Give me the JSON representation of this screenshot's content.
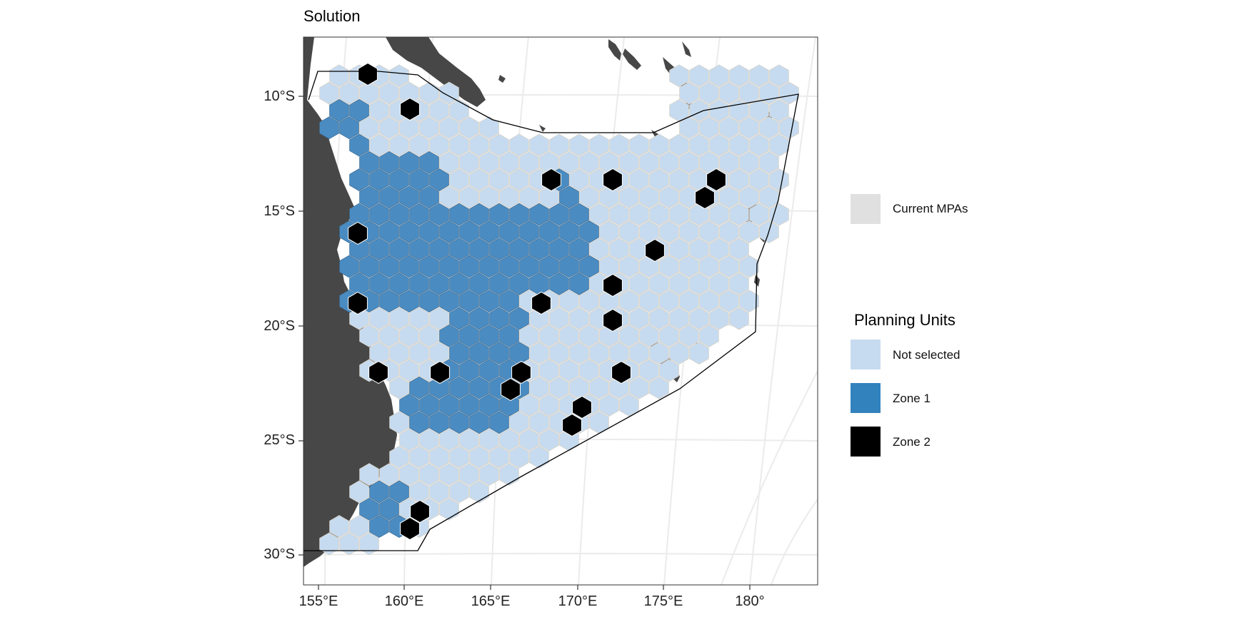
{
  "title": "Solution",
  "axes": {
    "y_ticks": [
      "10°S",
      "15°S",
      "20°S",
      "25°S",
      "30°S"
    ],
    "x_ticks": [
      "155°E",
      "160°E",
      "165°E",
      "170°E",
      "175°E",
      "180°"
    ]
  },
  "legend_mpa": {
    "label": "Current MPAs",
    "color": "#e0e0e0"
  },
  "legend_pu": {
    "title": "Planning Units",
    "items": [
      {
        "label": "Not selected",
        "color": "#c6dbef"
      },
      {
        "label": "Zone 1",
        "color": "#3182bd"
      },
      {
        "label": "Zone 2",
        "color": "#000000"
      }
    ]
  },
  "colors": {
    "land": "#474747",
    "grid": "#ebebeb",
    "hex_not_selected": "#c6dbef",
    "hex_zone1": "#4a8cc2",
    "hex_zone2": "#000000",
    "hex_border": "#d9d2c8"
  }
}
